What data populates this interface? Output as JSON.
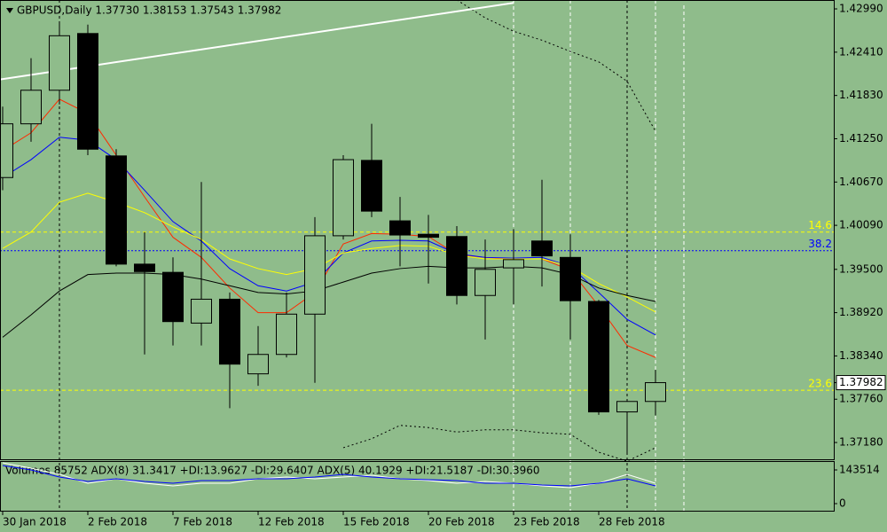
{
  "chart_data": {
    "type": "candlestick",
    "title": "GBPUSD,Daily  1.37730 1.38153 1.37543 1.37982",
    "background": "#8fbc8b",
    "categories": [
      "30 Jan 2018",
      null,
      null,
      "2 Feb 2018",
      null,
      null,
      "7 Feb 2018",
      null,
      null,
      "12 Feb 2018",
      null,
      null,
      "15 Feb 2018",
      null,
      null,
      "20 Feb 2018",
      null,
      null,
      "23 Feb 2018",
      null,
      null,
      "28 Feb 2018",
      null,
      null
    ],
    "open": [
      1.4073,
      1.4145,
      1.419,
      1.4266,
      1.4102,
      1.3957,
      1.3946,
      1.3878,
      1.391,
      1.381,
      1.3836,
      1.389,
      1.3995,
      1.4096,
      1.4015,
      1.3997,
      1.3994,
      1.3915,
      1.3952,
      1.3988,
      1.3966,
      1.3907,
      1.3759,
      1.3773
    ],
    "high": [
      1.4168,
      1.4233,
      1.4281,
      1.4278,
      1.4111,
      1.4,
      1.3966,
      1.4067,
      1.3919,
      1.3874,
      1.3919,
      1.402,
      1.4103,
      1.4145,
      1.4047,
      1.4023,
      1.4008,
      1.399,
      1.4004,
      1.407,
      1.3997,
      1.3909,
      1.3776,
      1.38153
    ],
    "low": [
      1.4056,
      1.4121,
      1.4171,
      1.4103,
      1.3954,
      1.3836,
      1.3848,
      1.3848,
      1.3764,
      1.3794,
      1.3832,
      1.3798,
      1.399,
      1.402,
      1.3954,
      1.3931,
      1.3903,
      1.3856,
      1.3903,
      1.3927,
      1.3856,
      1.3755,
      1.3705,
      1.37543
    ],
    "close": [
      1.4145,
      1.419,
      1.4263,
      1.4111,
      1.3957,
      1.3947,
      1.388,
      1.391,
      1.3823,
      1.3836,
      1.389,
      1.3995,
      1.4097,
      1.4028,
      1.3996,
      1.3993,
      1.3915,
      1.395,
      1.3963,
      1.3968,
      1.3908,
      1.3759,
      1.3773,
      1.37982
    ],
    "bull_color": "#8fbc8b",
    "bear_color": "#000000",
    "lines": [
      {
        "color": "#ff2a00",
        "values": [
          1.4109,
          1.4133,
          1.4178,
          1.4159,
          1.4103,
          1.4047,
          1.3993,
          1.3966,
          1.3925,
          1.3892,
          1.3892,
          1.3919,
          1.3984,
          1.3998,
          1.3997,
          1.3994,
          1.397,
          1.3966,
          1.3964,
          1.3964,
          1.3949,
          1.3901,
          1.3848,
          1.3832
        ]
      },
      {
        "color": "#0000ff",
        "values": [
          1.4073,
          1.4097,
          1.4127,
          1.4123,
          1.4097,
          1.4056,
          1.4014,
          1.3988,
          1.3951,
          1.3928,
          1.3921,
          1.3933,
          1.3972,
          1.3988,
          1.3989,
          1.3988,
          1.3971,
          1.3966,
          1.3965,
          1.3966,
          1.3954,
          1.3919,
          1.3883,
          1.3862
        ]
      },
      {
        "color": "#ffff00",
        "values": [
          1.3978,
          1.4,
          1.404,
          1.4052,
          1.404,
          1.4026,
          1.4007,
          1.399,
          1.3964,
          1.3951,
          1.3943,
          1.3951,
          1.3972,
          1.3978,
          1.3982,
          1.3981,
          1.3969,
          1.3964,
          1.3964,
          1.3964,
          1.3954,
          1.3931,
          1.3913,
          1.3893
        ]
      },
      {
        "color": "#000000",
        "values": [
          1.3859,
          1.3889,
          1.3921,
          1.3943,
          1.3945,
          1.3945,
          1.3943,
          1.3937,
          1.3928,
          1.3919,
          1.3917,
          1.3921,
          1.3933,
          1.3945,
          1.3951,
          1.3954,
          1.3952,
          1.3952,
          1.3954,
          1.3952,
          1.3943,
          1.3925,
          1.3915,
          1.3907
        ]
      },
      {
        "color": "#000000",
        "dashed": true,
        "values": [
          null,
          null,
          null,
          null,
          null,
          null,
          null,
          null,
          null,
          null,
          null,
          null,
          null,
          null,
          null,
          null,
          1.4311,
          1.4287,
          1.4269,
          1.4257,
          1.4242,
          1.4228,
          1.4202,
          1.4135
        ]
      },
      {
        "color": "#000000",
        "dashed": true,
        "values": [
          null,
          null,
          null,
          null,
          null,
          null,
          null,
          null,
          null,
          null,
          null,
          null,
          1.3711,
          1.3723,
          1.3741,
          1.3738,
          1.3732,
          1.3735,
          1.3735,
          1.3731,
          1.3729,
          1.3705,
          1.3693,
          1.3711
        ]
      }
    ],
    "trendline": {
      "color": "#ffffff",
      "points": [
        [
          0,
          1.4205
        ],
        [
          18,
          1.4307
        ]
      ]
    },
    "levels": [
      {
        "label": 14.6,
        "value": 1.4,
        "color": "#ffff00"
      },
      {
        "label": 38.2,
        "value": 1.3975,
        "color": "#0000ff"
      },
      {
        "label": 23.6,
        "value": 1.3788,
        "color": "#ffff00"
      }
    ],
    "last_price": {
      "value": 1.37982,
      "label": "1.37982"
    },
    "ylim": [
      1.36955,
      1.43109
    ],
    "yticks": [
      {
        "value": 1.4299,
        "label": "1.42990"
      },
      {
        "value": 1.4241,
        "label": "1.42410"
      },
      {
        "value": 1.4183,
        "label": "1.41830"
      },
      {
        "value": 1.4125,
        "label": "1.41250"
      },
      {
        "value": 1.4067,
        "label": "1.40670"
      },
      {
        "value": 1.4009,
        "label": "1.40090"
      },
      {
        "value": 1.395,
        "label": "1.39500"
      },
      {
        "value": 1.3892,
        "label": "1.38920"
      },
      {
        "value": 1.3834,
        "label": "1.38340"
      },
      {
        "value": 1.3776,
        "label": "1.37760"
      },
      {
        "value": 1.3718,
        "label": "1.37180"
      }
    ],
    "pane": {
      "title": "Volumes 85752  ADX(8) 31.3417 +DI:13.9627 -DI:29.6407  ADX(5) 40.1929 +DI:21.5187 -DI:30.3960",
      "ylim": [
        0,
        181296
      ],
      "yticks": [
        0,
        143514
      ],
      "series": [
        {
          "color": "#ffffff",
          "values": [
            173742,
            151080,
            124641,
            86871,
            105756,
            86871,
            75540,
            86871,
            86871,
            105756,
            113310,
            105756,
            113310,
            120864,
            105756,
            98202,
            86871,
            94425,
            86871,
            75540,
            67986,
            86871,
            124641,
            86871
          ]
        },
        {
          "color": "#0000ff",
          "values": [
            162411,
            143526,
            113310,
            94425,
            105756,
            94425,
            86871,
            98202,
            98202,
            105756,
            105756,
            113310,
            124641,
            113310,
            105756,
            101979,
            98202,
            86871,
            86871,
            79317,
            75540,
            86871,
            105756,
            75540
          ]
        }
      ]
    }
  }
}
